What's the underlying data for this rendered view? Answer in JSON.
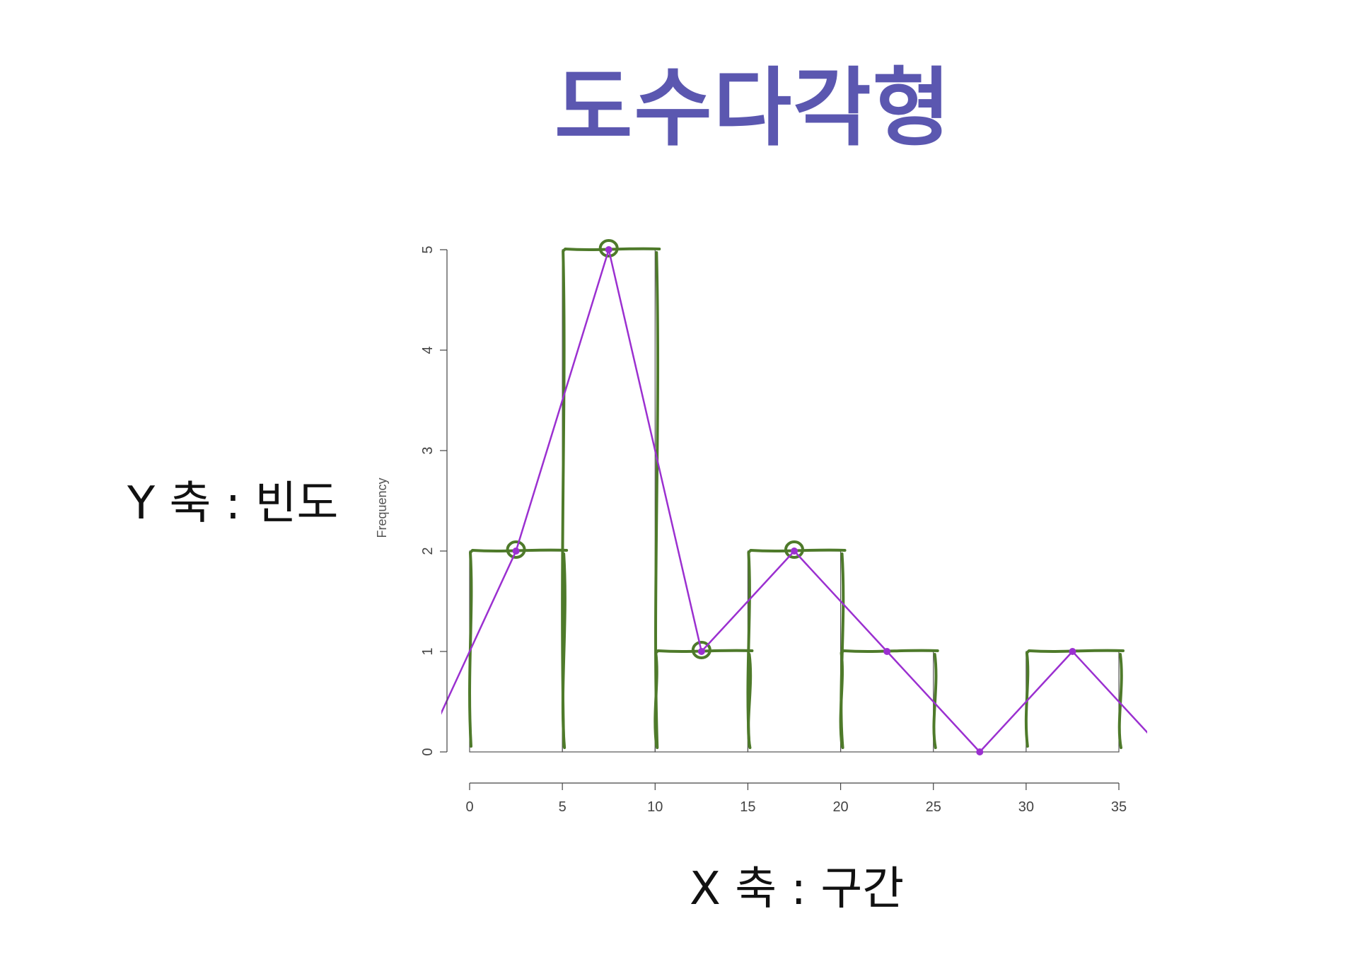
{
  "slide": {
    "title": "도수다각형",
    "y_caption": "Y 축 : 빈도",
    "x_caption": "X 축 : 구간"
  },
  "colors": {
    "title": "#5b57b0",
    "bars": "#555555",
    "polygon": "#9b30d0",
    "annotation": "#4e7a2a"
  },
  "chart_data": {
    "type": "bar",
    "bins": [
      [
        0,
        5
      ],
      [
        5,
        10
      ],
      [
        10,
        15
      ],
      [
        15,
        20
      ],
      [
        20,
        25
      ],
      [
        25,
        30
      ],
      [
        30,
        35
      ]
    ],
    "values": [
      2,
      5,
      1,
      2,
      1,
      0,
      1
    ],
    "polygon": {
      "x": [
        -2.5,
        2.5,
        7.5,
        12.5,
        17.5,
        22.5,
        27.5,
        32.5,
        37.5
      ],
      "y": [
        0,
        2,
        5,
        1,
        2,
        1,
        0,
        1,
        0
      ]
    },
    "ylabel": "Frequency",
    "xlabel": "",
    "xticks": [
      0,
      5,
      10,
      15,
      20,
      25,
      30,
      35
    ],
    "yticks": [
      0,
      1,
      2,
      3,
      4,
      5
    ],
    "xlim": [
      0,
      35
    ],
    "ylim": [
      0,
      5
    ],
    "grid": false
  }
}
